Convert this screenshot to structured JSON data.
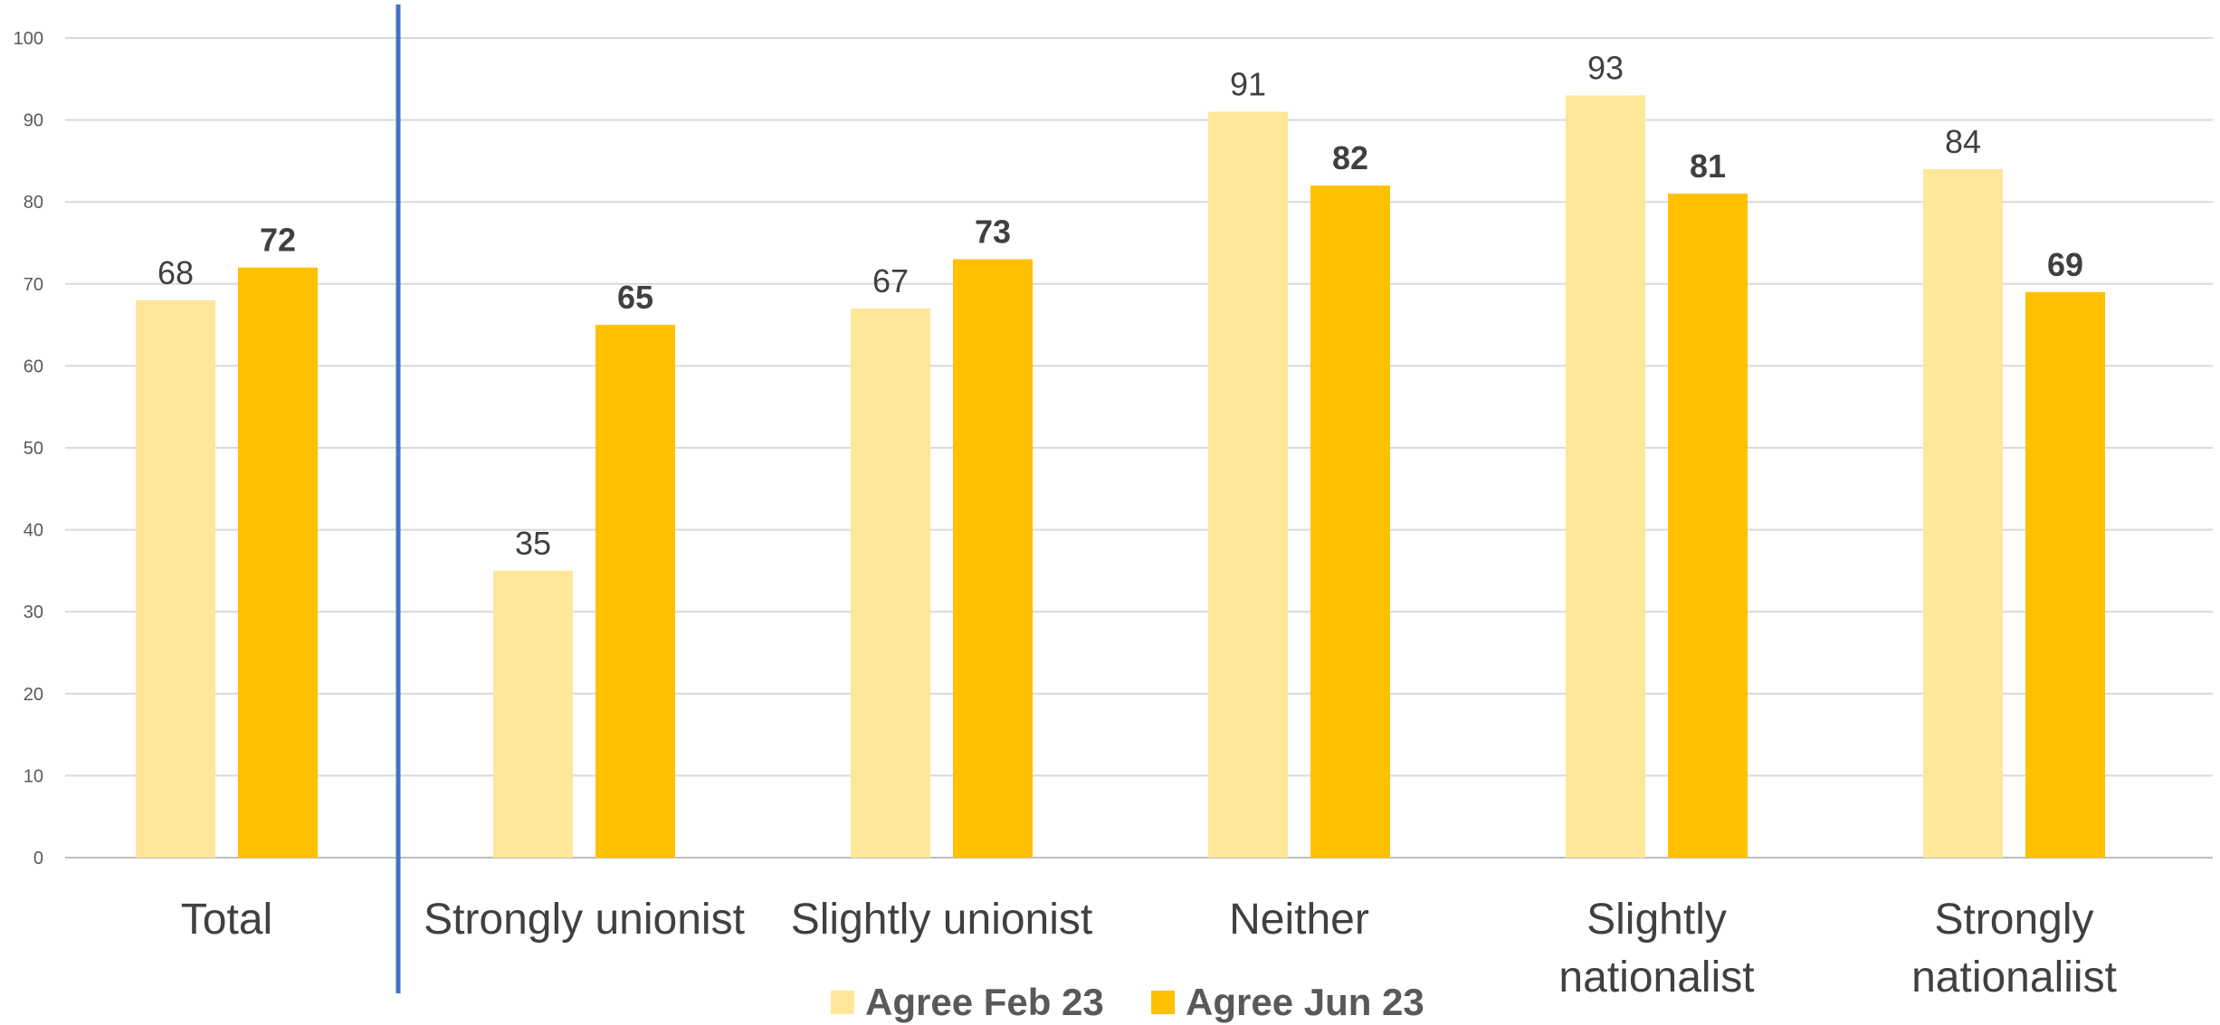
{
  "chart_data": {
    "type": "bar",
    "categories": [
      [
        "Total"
      ],
      [
        "Strongly unionist"
      ],
      [
        "Slightly unionist"
      ],
      [
        "Neither"
      ],
      [
        "Slightly",
        "nationalist"
      ],
      [
        "Strongly",
        "nationaliist"
      ]
    ],
    "series": [
      {
        "name": "Agree Feb 23",
        "values": [
          68,
          35,
          67,
          91,
          93,
          84
        ],
        "color": "#FFE699"
      },
      {
        "name": "Agree Jun 23",
        "values": [
          72,
          65,
          73,
          82,
          81,
          69
        ],
        "color": "#FFC000"
      }
    ],
    "ylim": [
      0,
      100
    ],
    "yticks": [
      0,
      10,
      20,
      30,
      40,
      50,
      60,
      70,
      80,
      90,
      100
    ],
    "grid": true,
    "legend_position": "bottom",
    "divider_after_category": 0,
    "divider_color": "#4472C4"
  }
}
